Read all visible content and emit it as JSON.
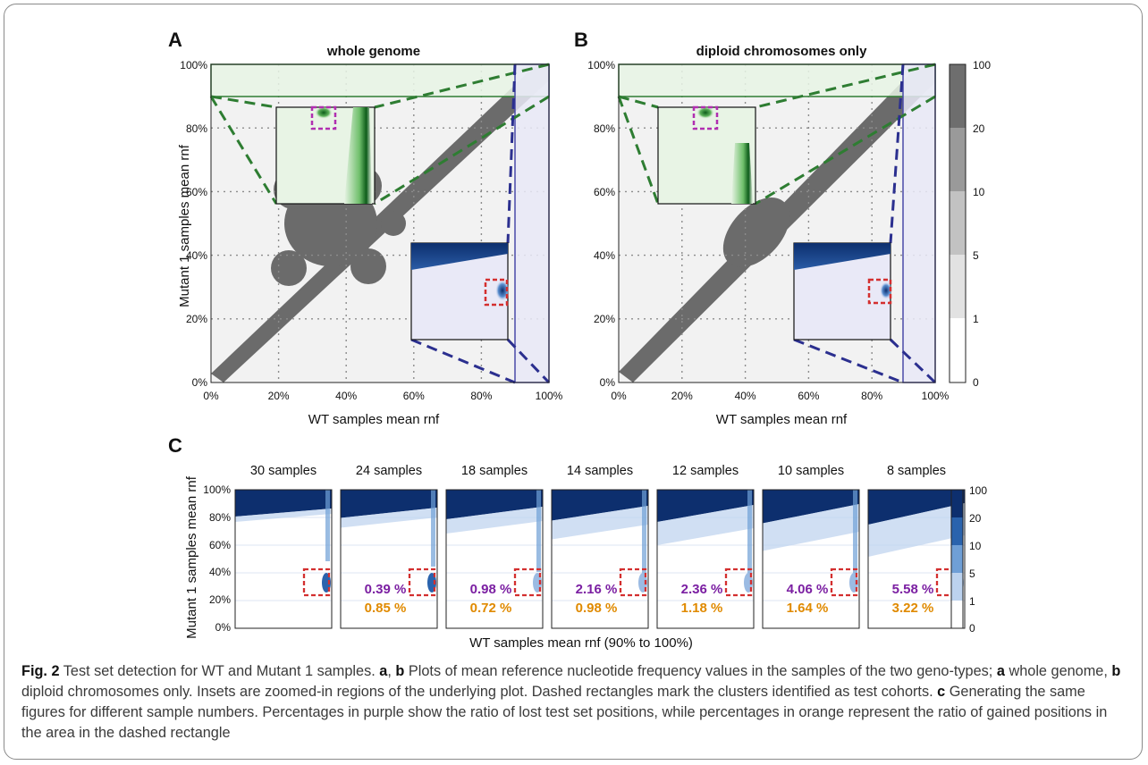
{
  "figure": {
    "panel_a": {
      "letter": "A",
      "title": "whole genome"
    },
    "panel_b": {
      "letter": "B",
      "title": "diploid chromosomes only"
    },
    "panel_c": {
      "letter": "C"
    },
    "y_axis_label": "Mutant 1 samples mean rnf",
    "x_axis_label": "WT samples mean rnf",
    "x_axis_label_c": "WT samples mean rnf (90% to 100%)",
    "ticks": [
      "0%",
      "20%",
      "40%",
      "60%",
      "80%",
      "100%"
    ],
    "colorbar_labels": [
      "0",
      "1",
      "5",
      "10",
      "20",
      "100"
    ],
    "colors": {
      "density_gray": "#6b6b6b",
      "green": "#2e7d32",
      "blue": "#2b2f8f",
      "navy": "#0d2f6e",
      "red_dashed": "#d32f2f",
      "purple": "#7b1fa2",
      "orange": "#e08a00"
    },
    "small_multiples": [
      {
        "title": "30 samples",
        "lost": "",
        "gained": ""
      },
      {
        "title": "24 samples",
        "lost": "0.39 %",
        "gained": "0.85 %"
      },
      {
        "title": "18 samples",
        "lost": "0.98 %",
        "gained": "0.72 %"
      },
      {
        "title": "14 samples",
        "lost": "2.16 %",
        "gained": "0.98 %"
      },
      {
        "title": "12 samples",
        "lost": "2.36 %",
        "gained": "1.18 %"
      },
      {
        "title": "10 samples",
        "lost": "4.06 %",
        "gained": "1.64 %"
      },
      {
        "title": "8 samples",
        "lost": "5.58 %",
        "gained": "3.22 %"
      }
    ]
  },
  "caption": {
    "fig_label": "Fig. 2",
    "text_1": " Test set detection for WT and Mutant 1 samples. ",
    "a": "a",
    "comma": ", ",
    "b": "b",
    "text_2": " Plots of mean reference nucleotide frequency values in the samples of the two geno-types; ",
    "a2": "a",
    "text_3": " whole genome, ",
    "b2": "b",
    "text_4": " diploid chromosomes only. Insets are zoomed-in regions of the underlying plot. Dashed rectangles mark the clusters identified as test cohorts. ",
    "c": "c",
    "text_5": " Generating the same figures for different sample numbers. Percentages in purple show the ratio of lost test set positions, while percentages in orange represent the ratio of gained positions in the area in the dashed rectangle"
  }
}
